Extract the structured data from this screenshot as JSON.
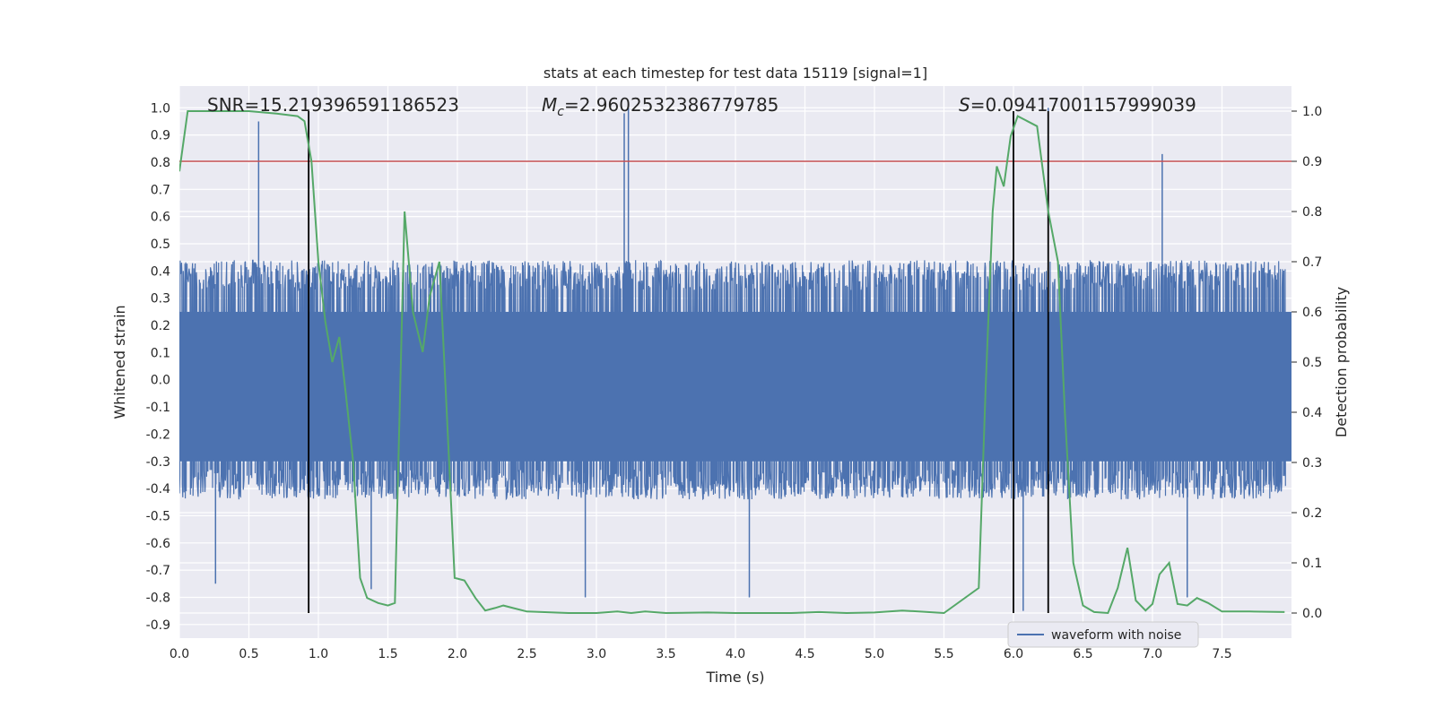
{
  "chart_data": {
    "type": "line",
    "title": "stats at each timestep for test data 15119 [signal=1]",
    "xlabel": "Time (s)",
    "ylabel_left": "Whitened strain",
    "ylabel_right": "Detection probability",
    "xlim": [
      0.0,
      8.0
    ],
    "ylim_left": [
      -0.95,
      1.08
    ],
    "ylim_right": [
      -0.05,
      1.05
    ],
    "x_ticks": [
      "0.0",
      "0.5",
      "1.0",
      "1.5",
      "2.0",
      "2.5",
      "3.0",
      "3.5",
      "4.0",
      "4.5",
      "5.0",
      "5.5",
      "6.0",
      "6.5",
      "7.0",
      "7.5"
    ],
    "y_left_ticks": [
      "-0.9",
      "-0.8",
      "-0.7",
      "-0.6",
      "-0.5",
      "-0.4",
      "-0.3",
      "-0.2",
      "-0.1",
      "0.0",
      "0.1",
      "0.2",
      "0.3",
      "0.4",
      "0.5",
      "0.6",
      "0.7",
      "0.8",
      "0.9",
      "1.0"
    ],
    "y_right_ticks": [
      "0.0",
      "0.1",
      "0.2",
      "0.3",
      "0.4",
      "0.5",
      "0.6",
      "0.7",
      "0.8",
      "0.9",
      "1.0"
    ],
    "grid": true,
    "legend": {
      "entries": [
        "waveform with noise"
      ],
      "placement": "lower-right"
    },
    "annotations": {
      "snr": "SNR=15.219396591186523",
      "mc_symbol": "M",
      "mc_sub": "c",
      "mc_value": "=2.9602532386779785",
      "s_symbol": "S",
      "s_value": "=0.09417001157999039"
    },
    "threshold": {
      "axis": "right",
      "value": 0.9,
      "color": "#c44e52"
    },
    "vertical_lines": {
      "x": [
        0.93,
        6.0,
        6.25
      ],
      "ymin_right": 0.0,
      "ymax_right": 1.0
    },
    "series": [
      {
        "name": "waveform with noise",
        "axis": "left",
        "color": "#4c72b0",
        "band": {
          "envelope": 0.44,
          "spike_max": 0.95,
          "spike_min": -0.85
        },
        "spikes": [
          {
            "x": 0.57,
            "y": 0.95
          },
          {
            "x": 3.2,
            "y": 0.98
          },
          {
            "x": 3.23,
            "y": 1.0
          },
          {
            "x": 6.25,
            "y": 1.0
          },
          {
            "x": 7.07,
            "y": 0.83
          },
          {
            "x": 6.07,
            "y": -0.85
          },
          {
            "x": 2.92,
            "y": -0.8
          },
          {
            "x": 4.1,
            "y": -0.8
          },
          {
            "x": 0.26,
            "y": -0.75
          },
          {
            "x": 1.38,
            "y": -0.77
          },
          {
            "x": 7.25,
            "y": -0.8
          }
        ]
      },
      {
        "name": "detection probability",
        "axis": "right",
        "color": "#55a868",
        "x": [
          0.0,
          0.06,
          0.15,
          0.3,
          0.5,
          0.7,
          0.85,
          0.9,
          0.95,
          1.0,
          1.05,
          1.1,
          1.15,
          1.2,
          1.25,
          1.3,
          1.35,
          1.43,
          1.5,
          1.55,
          1.62,
          1.68,
          1.75,
          1.8,
          1.87,
          1.92,
          1.98,
          2.05,
          2.13,
          2.2,
          2.27,
          2.33,
          2.4,
          2.5,
          2.8,
          3.0,
          3.15,
          3.25,
          3.35,
          3.5,
          3.8,
          4.0,
          4.4,
          4.6,
          4.8,
          5.0,
          5.2,
          5.5,
          5.75,
          5.8,
          5.85,
          5.88,
          5.93,
          5.98,
          6.03,
          6.1,
          6.17,
          6.25,
          6.32,
          6.37,
          6.43,
          6.5,
          6.58,
          6.68,
          6.75,
          6.82,
          6.88,
          6.95,
          7.0,
          7.05,
          7.12,
          7.18,
          7.25,
          7.32,
          7.4,
          7.5,
          7.7,
          7.95
        ],
        "y": [
          0.88,
          1.0,
          1.0,
          1.0,
          1.0,
          0.995,
          0.99,
          0.98,
          0.9,
          0.7,
          0.58,
          0.5,
          0.55,
          0.43,
          0.3,
          0.07,
          0.03,
          0.02,
          0.015,
          0.02,
          0.8,
          0.6,
          0.52,
          0.63,
          0.7,
          0.42,
          0.07,
          0.065,
          0.03,
          0.005,
          0.01,
          0.015,
          0.01,
          0.003,
          0.0,
          0.0,
          0.003,
          0.0,
          0.003,
          0.0,
          0.001,
          0.0,
          0.0,
          0.002,
          0.0,
          0.001,
          0.005,
          0.0,
          0.05,
          0.45,
          0.8,
          0.89,
          0.85,
          0.95,
          0.99,
          0.98,
          0.97,
          0.8,
          0.7,
          0.4,
          0.1,
          0.015,
          0.002,
          0.0,
          0.05,
          0.13,
          0.025,
          0.005,
          0.018,
          0.077,
          0.1,
          0.018,
          0.015,
          0.03,
          0.02,
          0.003,
          0.003,
          0.002
        ]
      }
    ]
  }
}
